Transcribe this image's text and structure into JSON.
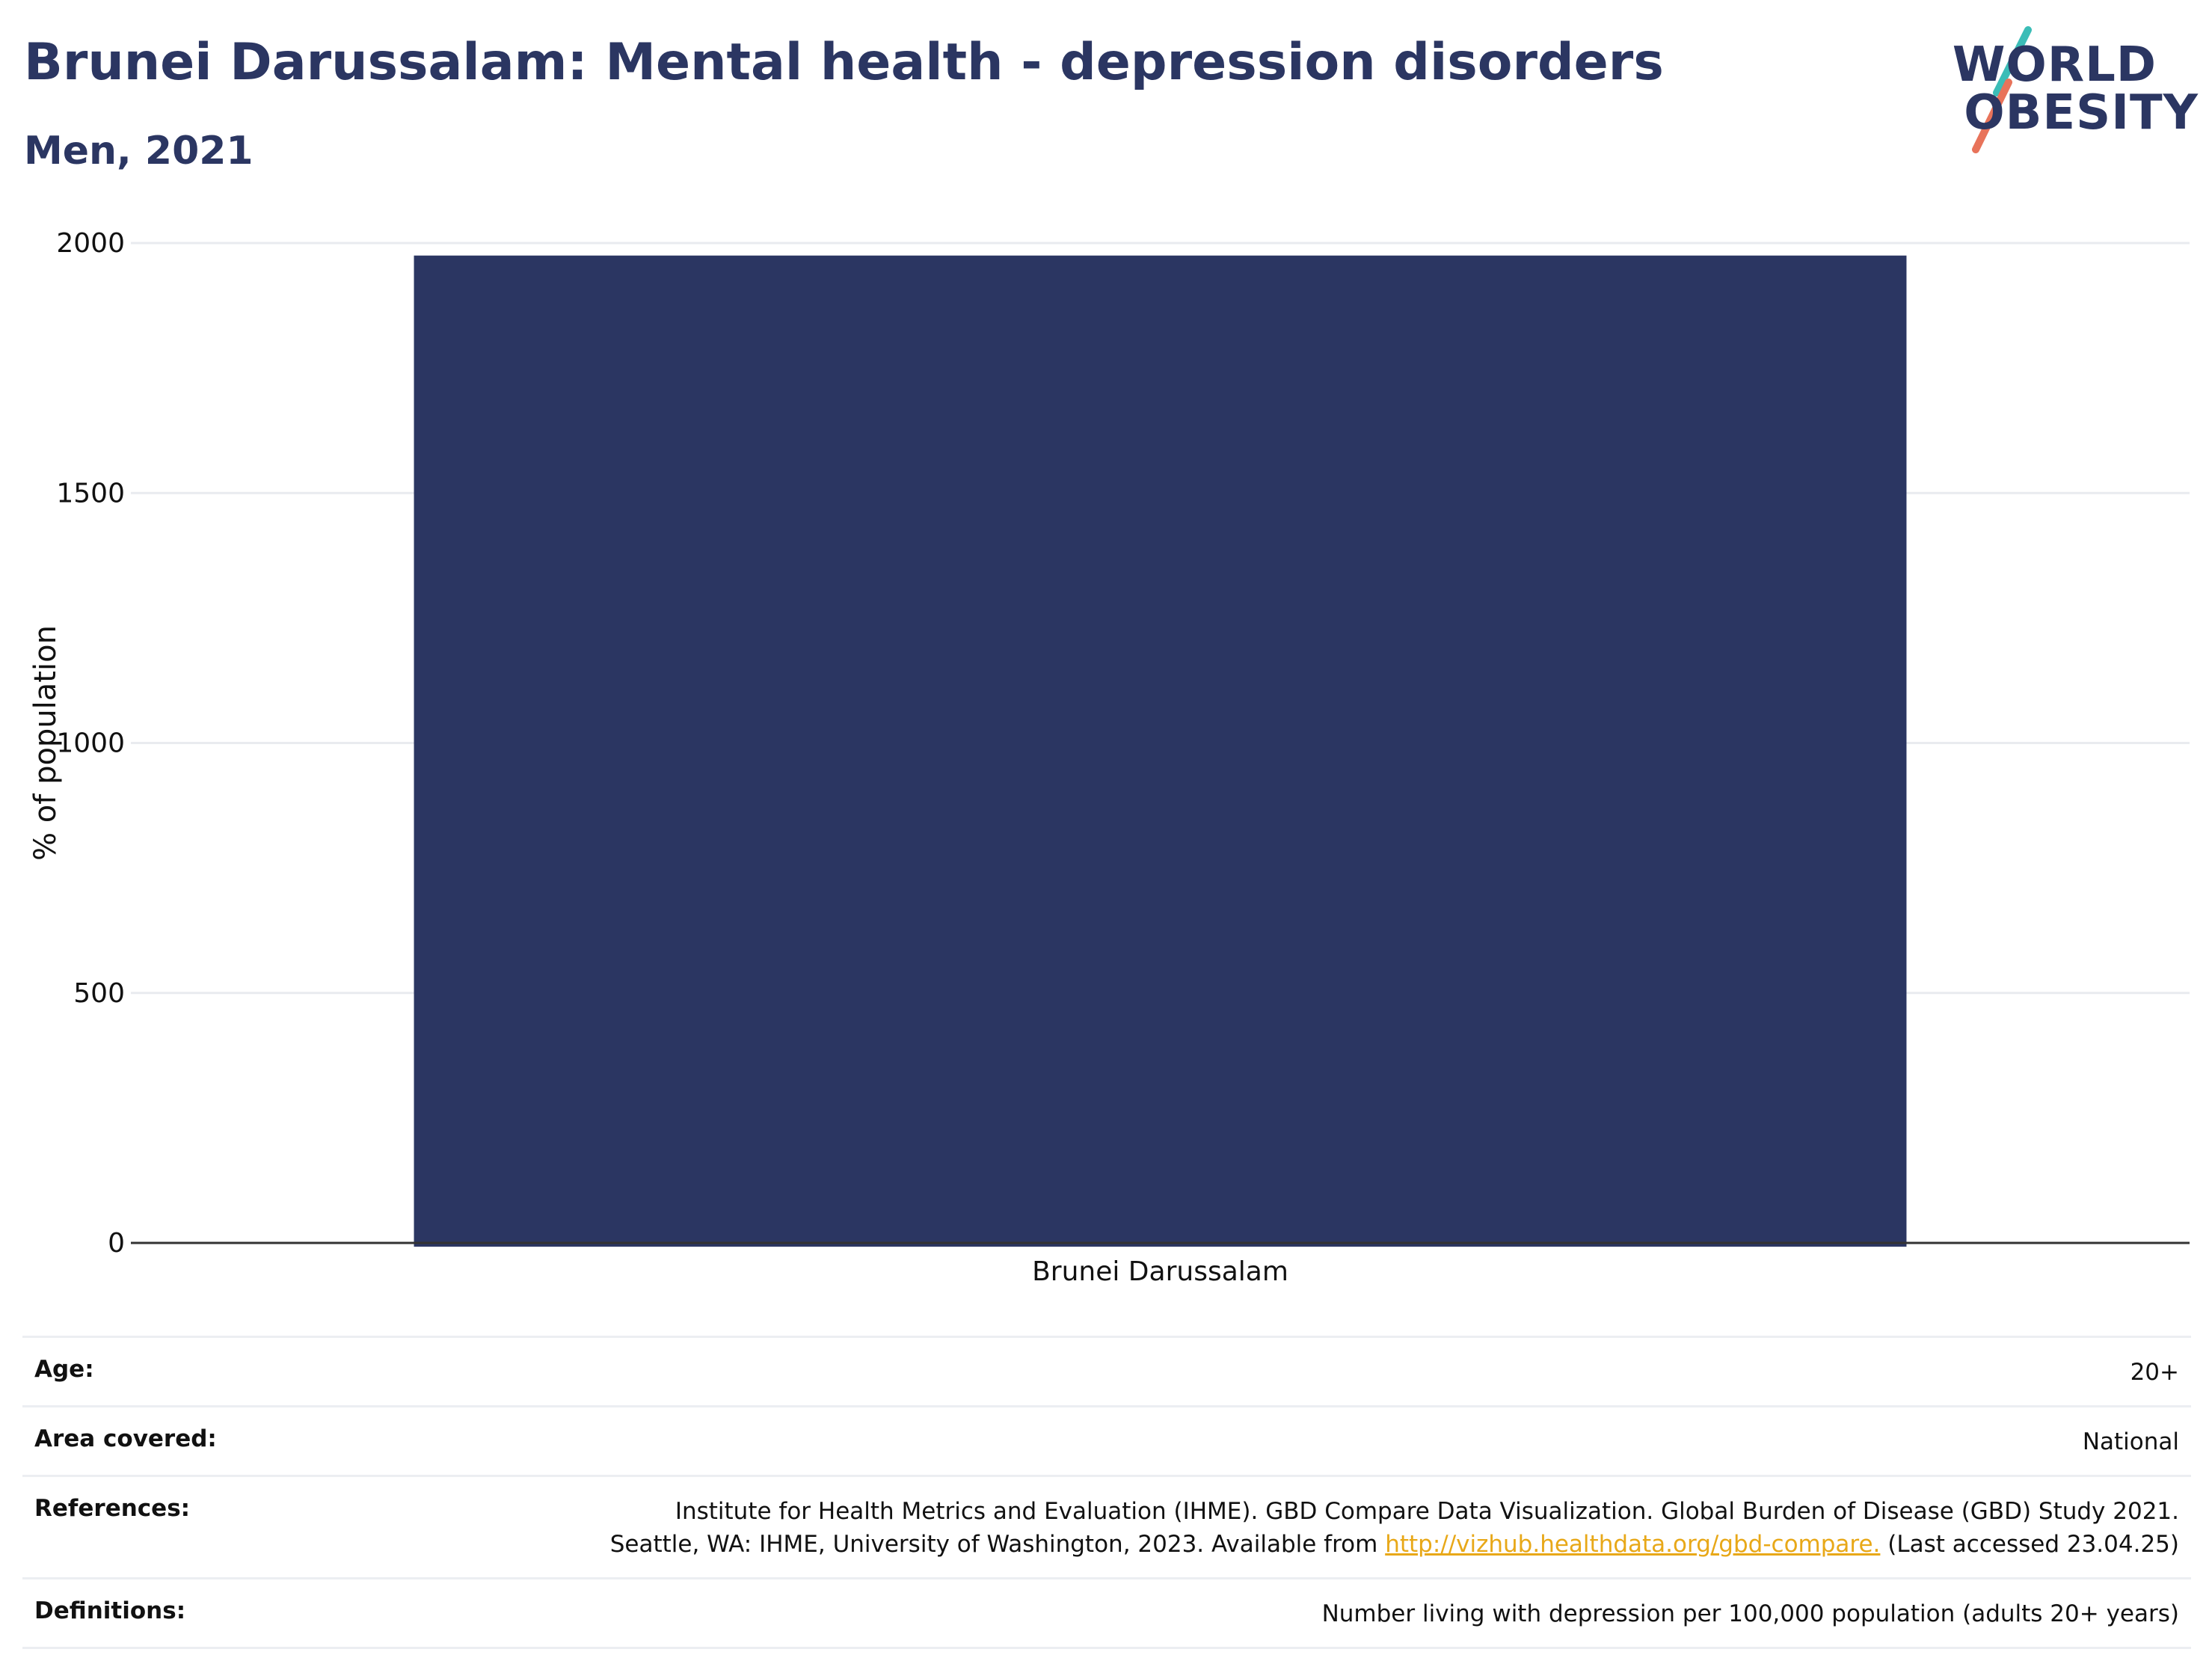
{
  "header": {
    "title": "Brunei Darussalam: Mental health - depression disorders",
    "subtitle": "Men, 2021"
  },
  "logo": {
    "line1": "WORLD",
    "line2": "OBESITY",
    "colors": {
      "text": "#2b3662",
      "teal": "#3bbdb7",
      "coral": "#e8735a"
    }
  },
  "chart_data": {
    "type": "bar",
    "categories": [
      "Brunei Darussalam"
    ],
    "values": [
      1975
    ],
    "title": "",
    "xlabel": "",
    "ylabel": "% of population",
    "ylim": [
      0,
      2000
    ],
    "yticks": [
      0,
      500,
      1000,
      1500,
      2000
    ],
    "grid": true,
    "bar_color": "#2b3662",
    "grid_color": "#e9ebef",
    "axis_color": "#333333"
  },
  "meta": {
    "age": {
      "label": "Age:",
      "value": "20+"
    },
    "area": {
      "label": "Area covered:",
      "value": "National"
    },
    "references": {
      "label": "References:",
      "line1": "Institute for Health Metrics and Evaluation (IHME). GBD Compare Data Visualization. Global Burden of Disease (GBD) Study 2021.",
      "line2_before": "Seattle, WA: IHME, University of Washington, 2023. Available from ",
      "link": "http://vizhub.healthdata.org/gbd-compare.",
      "line2_after": " (Last accessed 23.04.25)"
    },
    "definitions": {
      "label": "Definitions:",
      "value": "Number living with depression per 100,000 population (adults 20+ years)"
    }
  }
}
